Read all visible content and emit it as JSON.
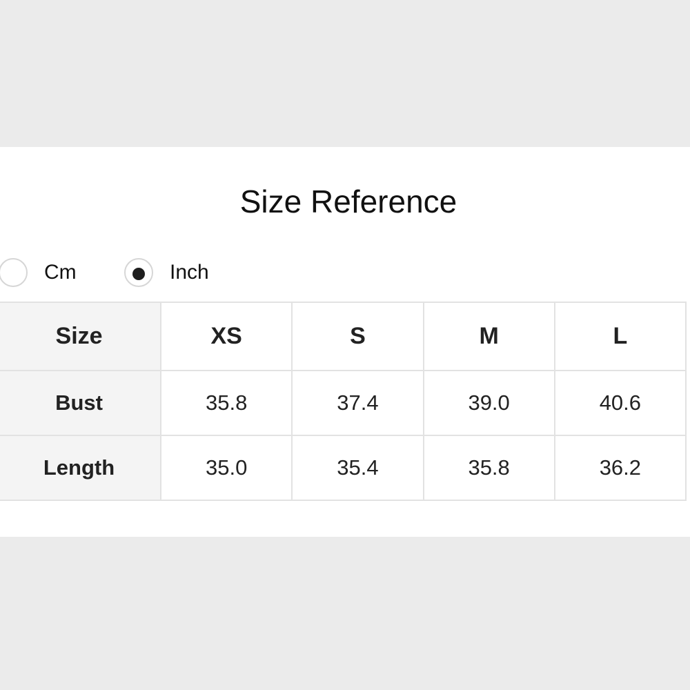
{
  "title": "Size Reference",
  "units": [
    {
      "label": "Cm",
      "selected": false
    },
    {
      "label": "Inch",
      "selected": true
    }
  ],
  "table": {
    "header": [
      "Size",
      "XS",
      "S",
      "M",
      "L"
    ],
    "rows": [
      [
        "Bust",
        "35.8",
        "37.4",
        "39.0",
        "40.6"
      ],
      [
        "Length",
        "35.0",
        "35.4",
        "35.8",
        "36.2"
      ]
    ]
  }
}
